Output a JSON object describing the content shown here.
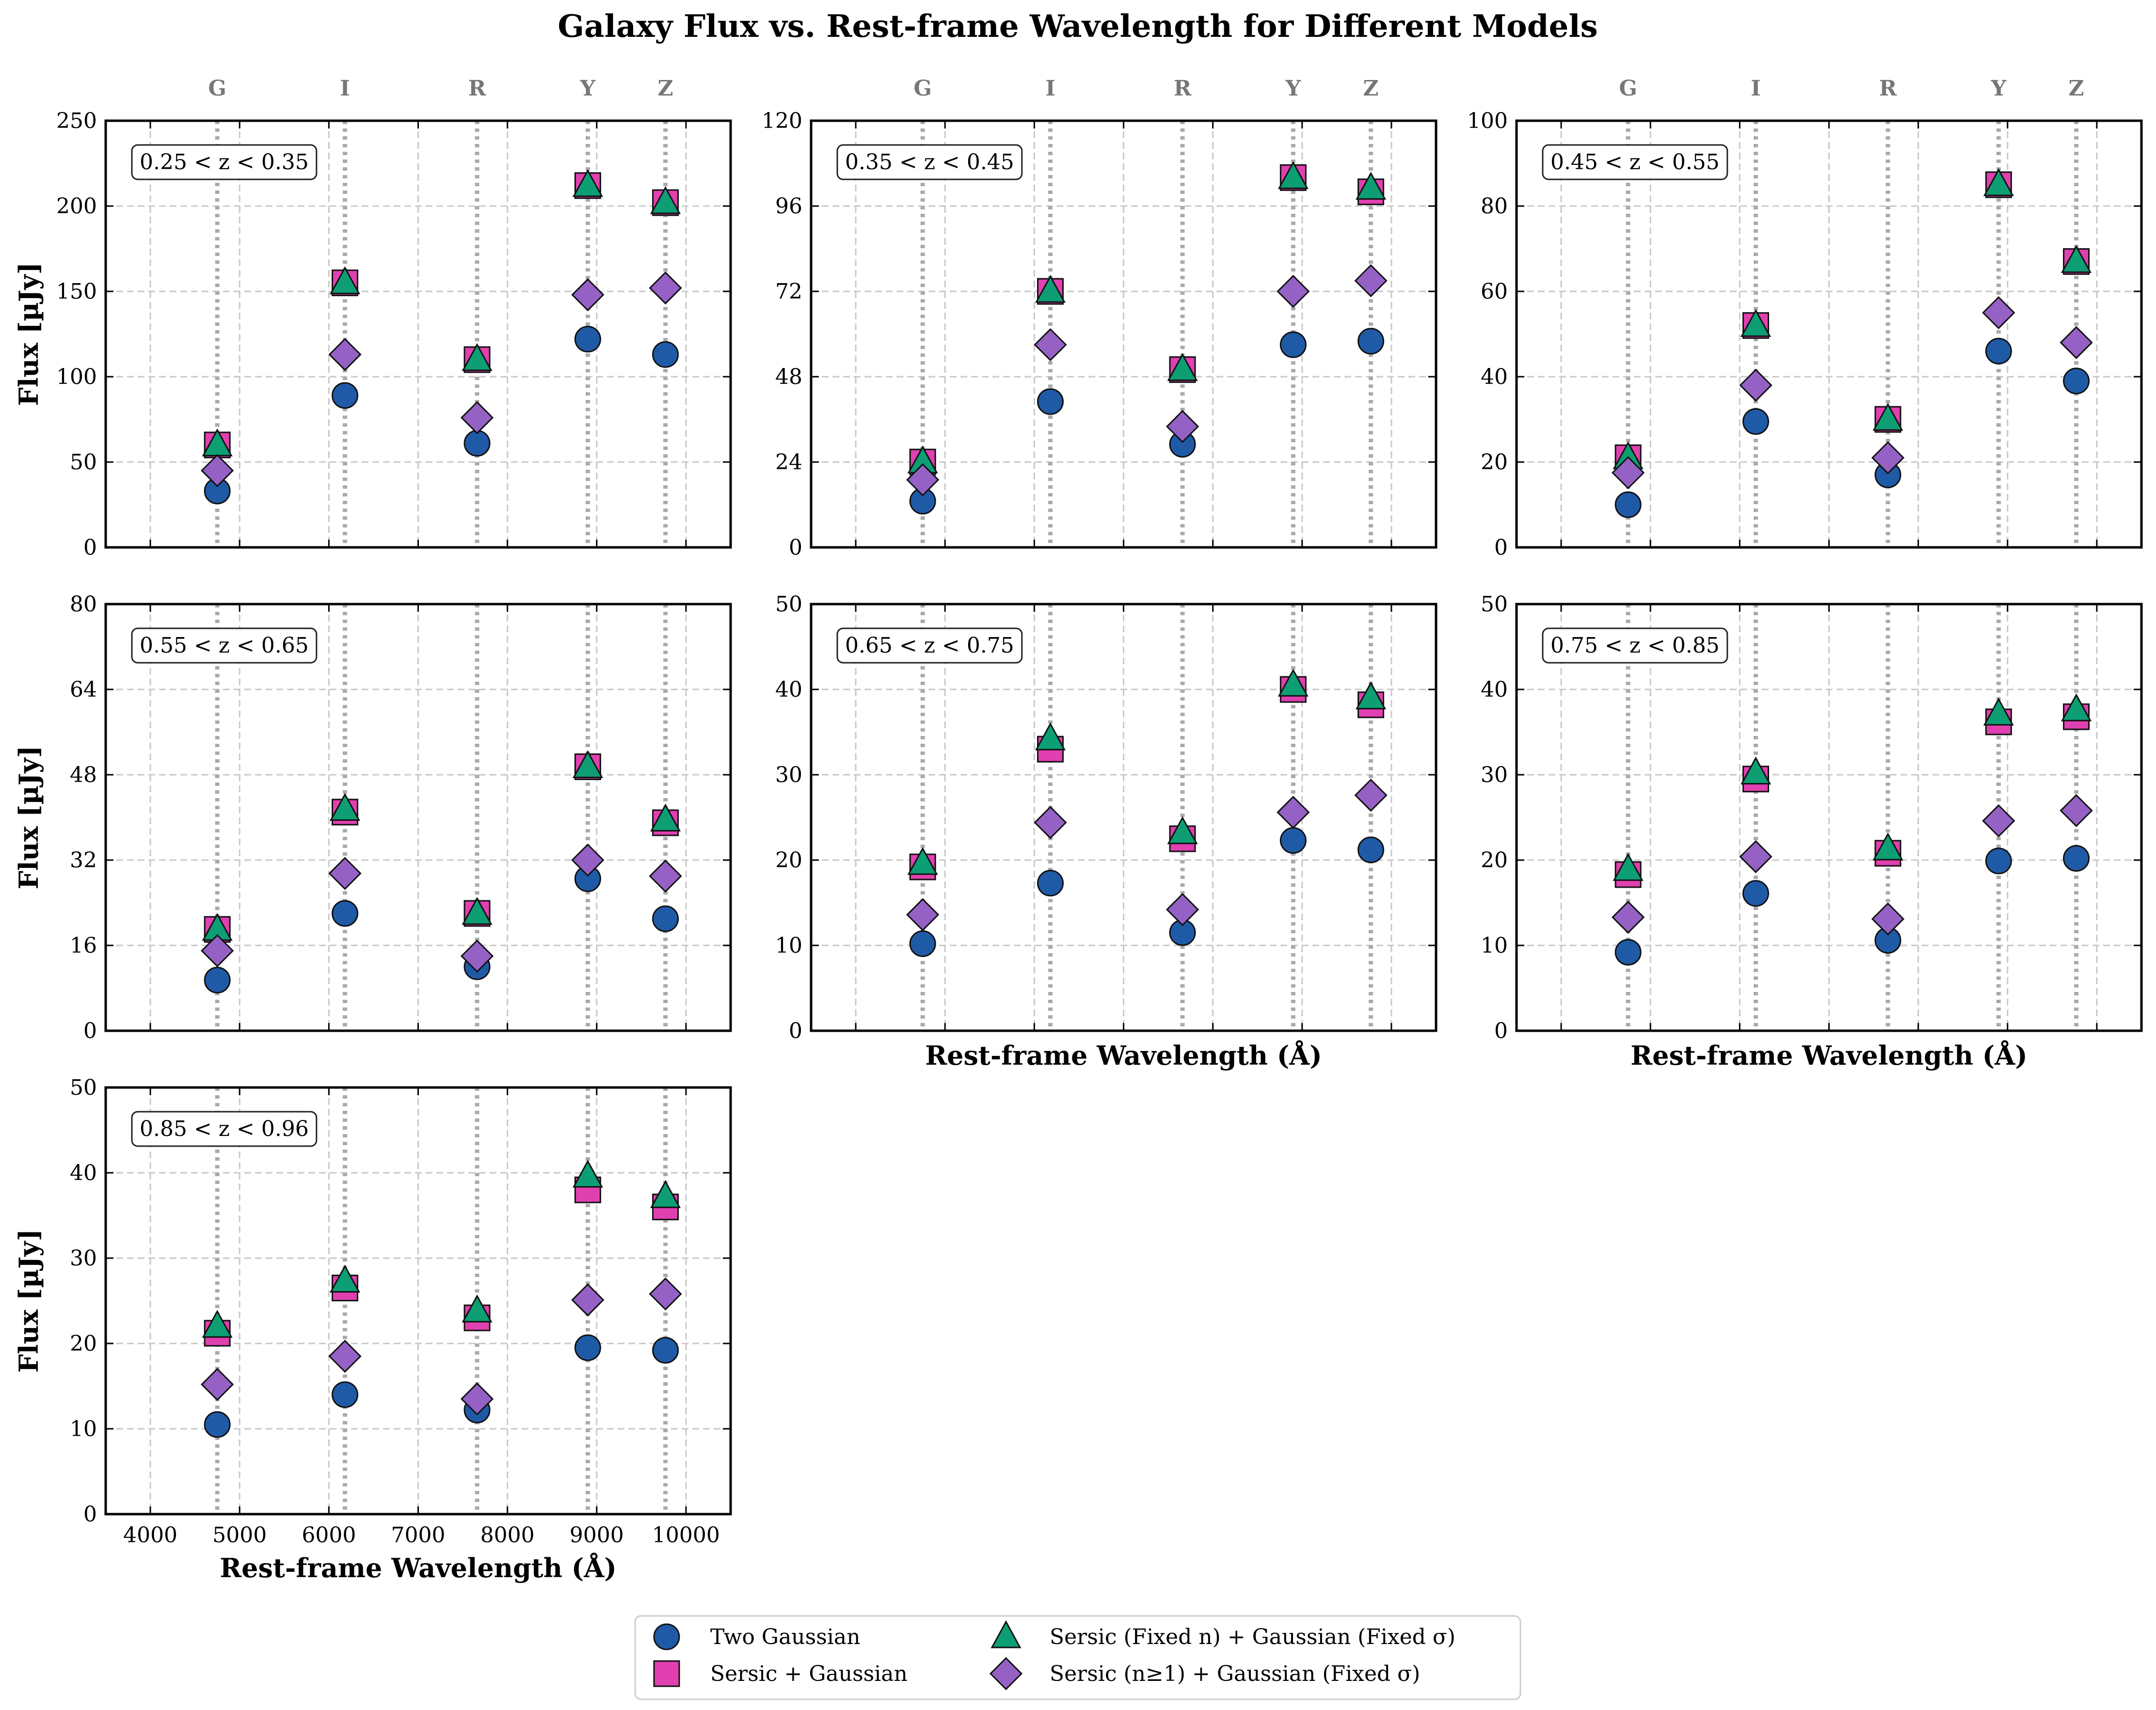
{
  "title": "Galaxy Flux vs. Rest-frame Wavelength for Different Models",
  "colors": {
    "two_gaussian": "#1f5aa6",
    "sersic_gaussian": "#e040b0",
    "sersic_fixed_n": "#0d9e74",
    "sersic_n_ge_1": "#9561c4",
    "grid": "#c8c8c8",
    "band_line": "#aaaaaa"
  },
  "legend": {
    "items": [
      {
        "label": "Two Gaussian",
        "marker": "circle",
        "color": "#1f5aa6"
      },
      {
        "label": "Sersic + Gaussian",
        "marker": "square",
        "color": "#e040b0"
      },
      {
        "label": "Sersic (Fixed n) + Gaussian (Fixed σ)",
        "marker": "triangle",
        "color": "#0d9e74"
      },
      {
        "label": "Sersic (n≥1) + Gaussian (Fixed σ)",
        "marker": "diamond",
        "color": "#9561c4"
      }
    ]
  },
  "chart_data": {
    "type": "scatter",
    "xlabel": "Rest-frame Wavelength (Å)",
    "ylabel": "Flux [µJy]",
    "xlim": [
      3500,
      10500
    ],
    "xticks": [
      4000,
      5000,
      6000,
      7000,
      8000,
      9000,
      10000
    ],
    "grid": true,
    "legend_placement": "bottom-center",
    "bands": [
      {
        "name": "G",
        "wavelength": 4750
      },
      {
        "name": "I",
        "wavelength": 6180
      },
      {
        "name": "R",
        "wavelength": 7660
      },
      {
        "name": "Y",
        "wavelength": 8900
      },
      {
        "name": "Z",
        "wavelength": 9770
      }
    ],
    "series_names": [
      "Two Gaussian",
      "Sersic + Gaussian",
      "Sersic (Fixed n) + Gaussian (Fixed σ)",
      "Sersic (n≥1) + Gaussian (Fixed σ)"
    ],
    "panels": [
      {
        "label": "0.25 < z < 0.35",
        "ylim": [
          0,
          250
        ],
        "yticks": [
          0,
          50,
          100,
          150,
          200,
          250
        ],
        "values": [
          [
            33,
            89,
            61,
            122,
            113
          ],
          [
            60,
            155,
            110,
            212,
            202
          ],
          [
            60,
            155,
            110,
            212,
            202
          ],
          [
            45,
            113,
            76,
            148,
            152
          ]
        ]
      },
      {
        "label": "0.35 < z < 0.45",
        "ylim": [
          0,
          120
        ],
        "yticks": [
          0,
          24,
          48,
          72,
          96,
          120
        ],
        "values": [
          [
            13,
            41,
            29,
            57,
            58
          ],
          [
            24,
            72,
            50,
            104,
            100
          ],
          [
            24,
            72,
            50,
            104,
            101
          ],
          [
            19,
            57,
            34,
            72,
            75
          ]
        ]
      },
      {
        "label": "0.45 < z < 0.55",
        "ylim": [
          0,
          100
        ],
        "yticks": [
          0,
          20,
          40,
          60,
          80,
          100
        ],
        "values": [
          [
            10,
            29.5,
            17,
            46,
            39
          ],
          [
            21,
            52,
            30,
            85,
            67
          ],
          [
            21,
            52,
            30,
            85,
            67
          ],
          [
            17.5,
            38,
            21,
            55,
            48
          ]
        ]
      },
      {
        "label": "0.55 < z < 0.65",
        "ylim": [
          0,
          80
        ],
        "yticks": [
          0,
          16,
          32,
          48,
          64,
          80
        ],
        "values": [
          [
            9.5,
            22,
            12,
            28.5,
            21
          ],
          [
            19,
            41,
            22,
            49.5,
            39
          ],
          [
            19,
            41.5,
            22,
            49.5,
            39.5
          ],
          [
            15,
            29.5,
            14,
            32,
            29
          ]
        ]
      },
      {
        "label": "0.65 < z < 0.75",
        "ylim": [
          0,
          50
        ],
        "yticks": [
          0,
          10,
          20,
          30,
          40,
          50
        ],
        "values": [
          [
            10.2,
            17.3,
            11.5,
            22.3,
            21.2
          ],
          [
            19.2,
            33,
            22.5,
            40,
            38.2
          ],
          [
            19.6,
            34.2,
            23.2,
            40.5,
            39
          ],
          [
            13.6,
            24.4,
            14.2,
            25.6,
            27.6
          ]
        ]
      },
      {
        "label": "0.75 < z < 0.85",
        "ylim": [
          0,
          50
        ],
        "yticks": [
          0,
          10,
          20,
          30,
          40,
          50
        ],
        "values": [
          [
            9.2,
            16.1,
            10.6,
            19.9,
            20.2
          ],
          [
            18.3,
            29.5,
            20.8,
            36.2,
            36.8
          ],
          [
            18.9,
            30.2,
            21.3,
            37.1,
            37.6
          ],
          [
            13.3,
            20.4,
            13.1,
            24.6,
            25.8
          ]
        ]
      },
      {
        "label": "0.85 < z < 0.96",
        "ylim": [
          0,
          50
        ],
        "yticks": [
          0,
          10,
          20,
          30,
          40,
          50
        ],
        "values": [
          [
            10.5,
            14,
            12.2,
            19.5,
            19.2
          ],
          [
            21.2,
            26.5,
            23,
            38,
            36
          ],
          [
            22,
            27.3,
            23.8,
            39.6,
            37.2
          ],
          [
            15.2,
            18.5,
            13.5,
            25.1,
            25.8
          ]
        ]
      }
    ]
  }
}
